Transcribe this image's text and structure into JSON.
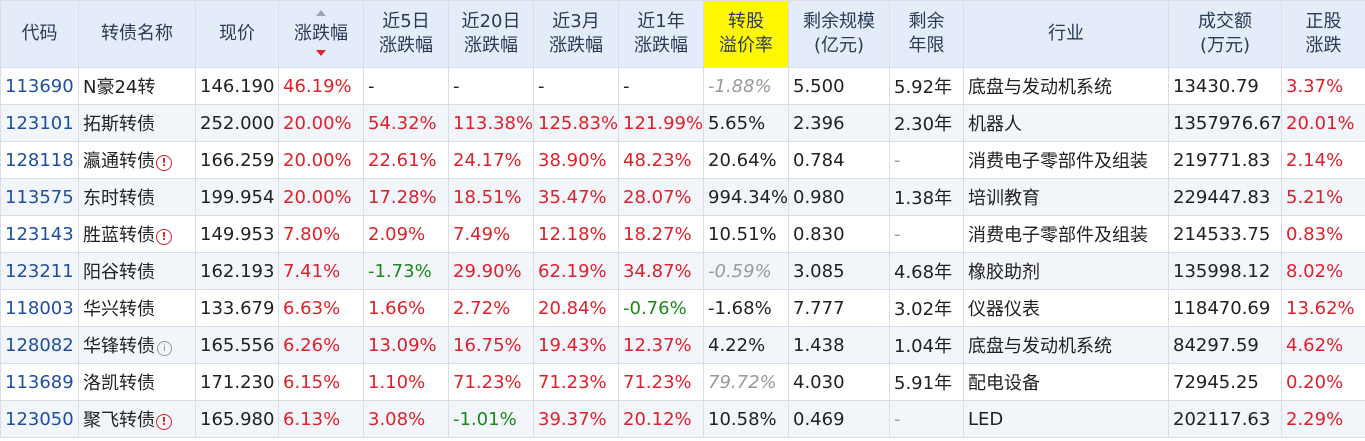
{
  "columns": {
    "code": "代码",
    "name": "转债名称",
    "price": "现价",
    "change": "涨跌幅",
    "chg5d": [
      "近5日",
      "涨跌幅"
    ],
    "chg20d": [
      "近20日",
      "涨跌幅"
    ],
    "chg3m": [
      "近3月",
      "涨跌幅"
    ],
    "chg1y": [
      "近1年",
      "涨跌幅"
    ],
    "premium": [
      "转股",
      "溢价率"
    ],
    "remain_size": [
      "剩余规模",
      "(亿元)"
    ],
    "remain_years": [
      "剩余",
      "年限"
    ],
    "industry": "行业",
    "turnover": [
      "成交额",
      "(万元)"
    ],
    "stock_change": [
      "正股",
      "涨跌"
    ]
  },
  "rows": [
    {
      "code": "113690",
      "name": "N豪24转",
      "flag": "",
      "price": "146.190",
      "change": "46.19%",
      "chg5d": "-",
      "chg20d": "-",
      "chg3m": "-",
      "chg1y": "-",
      "premium": "-1.88%",
      "remain_size": "5.500",
      "remain_years": "5.92年",
      "industry": "底盘与发动机系统",
      "turnover": "13430.79",
      "stock_change": "3.37%"
    },
    {
      "code": "123101",
      "name": "拓斯转债",
      "flag": "",
      "price": "252.000",
      "change": "20.00%",
      "chg5d": "54.32%",
      "chg20d": "113.38%",
      "chg3m": "125.83%",
      "chg1y": "121.99%",
      "premium": "5.65%",
      "remain_size": "2.396",
      "remain_years": "2.30年",
      "industry": "机器人",
      "turnover": "1357976.67",
      "stock_change": "20.01%"
    },
    {
      "code": "128118",
      "name": "瀛通转债",
      "flag": "warn",
      "price": "166.259",
      "change": "20.00%",
      "chg5d": "22.61%",
      "chg20d": "24.17%",
      "chg3m": "38.90%",
      "chg1y": "48.23%",
      "premium": "20.64%",
      "remain_size": "0.784",
      "remain_years": "-",
      "industry": "消费电子零部件及组装",
      "turnover": "219771.83",
      "stock_change": "2.14%"
    },
    {
      "code": "113575",
      "name": "东时转债",
      "flag": "",
      "price": "199.954",
      "change": "20.00%",
      "chg5d": "17.28%",
      "chg20d": "18.51%",
      "chg3m": "35.47%",
      "chg1y": "28.07%",
      "premium": "994.34%",
      "remain_size": "0.980",
      "remain_years": "1.38年",
      "industry": "培训教育",
      "turnover": "229447.83",
      "stock_change": "5.21%"
    },
    {
      "code": "123143",
      "name": "胜蓝转债",
      "flag": "warn",
      "price": "149.953",
      "change": "7.80%",
      "chg5d": "2.09%",
      "chg20d": "7.49%",
      "chg3m": "12.18%",
      "chg1y": "18.27%",
      "premium": "10.51%",
      "remain_size": "0.830",
      "remain_years": "-",
      "industry": "消费电子零部件及组装",
      "turnover": "214533.75",
      "stock_change": "0.83%"
    },
    {
      "code": "123211",
      "name": "阳谷转债",
      "flag": "",
      "price": "162.193",
      "change": "7.41%",
      "chg5d": "-1.73%",
      "chg20d": "29.90%",
      "chg3m": "62.19%",
      "chg1y": "34.87%",
      "premium": "-0.59%",
      "remain_size": "3.085",
      "remain_years": "4.68年",
      "industry": "橡胶助剂",
      "turnover": "135998.12",
      "stock_change": "8.02%"
    },
    {
      "code": "118003",
      "name": "华兴转债",
      "flag": "",
      "price": "133.679",
      "change": "6.63%",
      "chg5d": "1.66%",
      "chg20d": "2.72%",
      "chg3m": "20.84%",
      "chg1y": "-0.76%",
      "premium": "-1.68%",
      "remain_size": "7.777",
      "remain_years": "3.02年",
      "industry": "仪器仪表",
      "turnover": "118470.69",
      "stock_change": "13.62%"
    },
    {
      "code": "128082",
      "name": "华锋转债",
      "flag": "info",
      "price": "165.556",
      "change": "6.26%",
      "chg5d": "13.09%",
      "chg20d": "16.75%",
      "chg3m": "19.43%",
      "chg1y": "12.37%",
      "premium": "4.22%",
      "remain_size": "1.438",
      "remain_years": "1.04年",
      "industry": "底盘与发动机系统",
      "turnover": "84297.59",
      "stock_change": "4.62%"
    },
    {
      "code": "113689",
      "name": "洛凯转债",
      "flag": "",
      "price": "171.230",
      "change": "6.15%",
      "chg5d": "1.10%",
      "chg20d": "71.23%",
      "chg3m": "71.23%",
      "chg1y": "71.23%",
      "premium": "79.72%",
      "remain_size": "4.030",
      "remain_years": "5.91年",
      "industry": "配电设备",
      "turnover": "72945.25",
      "stock_change": "0.20%"
    },
    {
      "code": "123050",
      "name": "聚飞转债",
      "flag": "warn",
      "price": "165.980",
      "change": "6.13%",
      "chg5d": "3.08%",
      "chg20d": "-1.01%",
      "chg3m": "39.37%",
      "chg1y": "20.12%",
      "premium": "10.58%",
      "remain_size": "0.469",
      "remain_years": "-",
      "industry": "LED",
      "turnover": "202117.63",
      "stock_change": "2.29%"
    }
  ],
  "muted_premium_rows": [
    0,
    5,
    8
  ],
  "colors": {
    "up": "#e0202a",
    "down": "#1b8a1b",
    "code": "#1f4fa3",
    "header_bg": "#e3ecf8",
    "highlight": "#fff700"
  },
  "icons": {
    "warn": "exclamation-circle-icon",
    "info": "info-circle-icon",
    "sort": "sort-desc-icon"
  }
}
